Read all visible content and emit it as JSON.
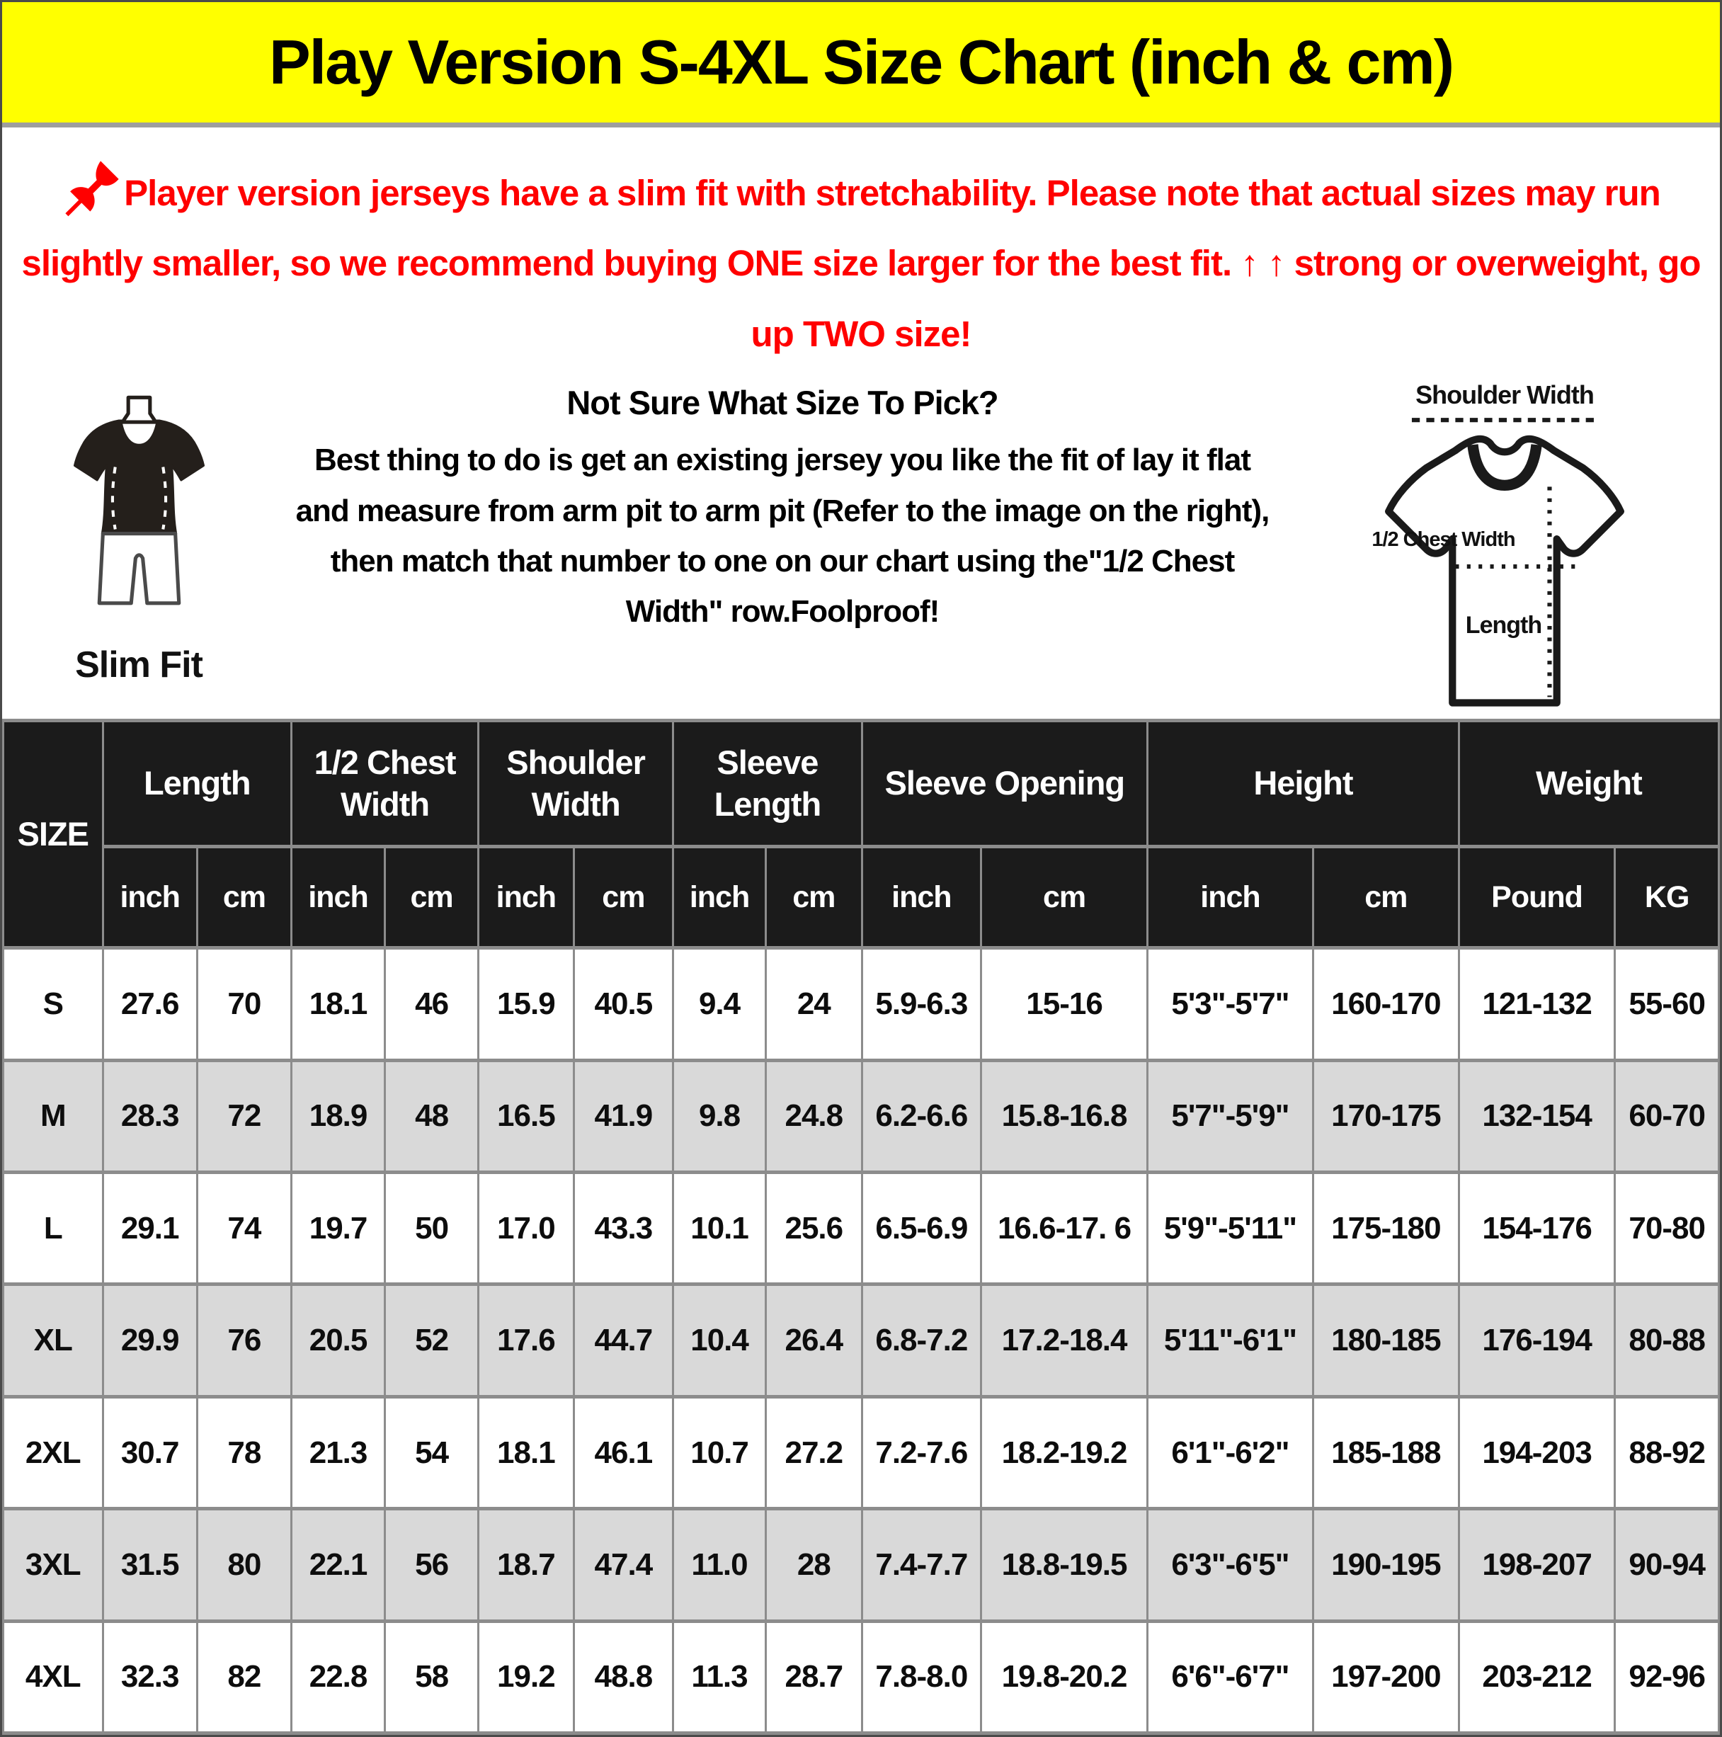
{
  "title": "Play Version S-4XL Size Chart (inch & cm)",
  "colors": {
    "banner_yellow": "#ffff00",
    "warning_red": "#ff0000",
    "table_header_bg": "#1b1b1b",
    "row_alt_gray": "#d9d9d9",
    "grid_border_gray": "#8c8c8c"
  },
  "warning": {
    "icon": "pushpin-icon",
    "text": "Player version jerseys have a slim fit with stretchability. Please note that actual sizes may run slightly smaller, so we recommend buying ONE size larger for the best fit. ↑ ↑ strong or overweight, go up TWO size!"
  },
  "fit_info": {
    "fit_label": "Slim Fit",
    "heading": "Not Sure What Size To Pick?",
    "body": "Best thing to do is get an existing jersey you like the fit of lay it flat and measure from arm pit to arm pit (Refer to the image on the right), then match that number to one on our chart using the\"1/2 Chest Width\" row.Foolproof!"
  },
  "diagram": {
    "shoulder_width_label": "Shoulder Width",
    "half_chest_width_label": "1/2 Chest Width",
    "length_label": "Length"
  },
  "size_table": {
    "corner_label": "SIZE",
    "groups": [
      {
        "label": "Length",
        "units": [
          "inch",
          "cm"
        ]
      },
      {
        "label": "1/2 Chest Width",
        "units": [
          "inch",
          "cm"
        ]
      },
      {
        "label": "Shoulder Width",
        "units": [
          "inch",
          "cm"
        ]
      },
      {
        "label": "Sleeve Length",
        "units": [
          "inch",
          "cm"
        ]
      },
      {
        "label": "Sleeve Opening",
        "units": [
          "inch",
          "cm"
        ]
      },
      {
        "label": "Height",
        "units": [
          "inch",
          "cm"
        ]
      },
      {
        "label": "Weight",
        "units": [
          "Pound",
          "KG"
        ]
      }
    ],
    "rows": [
      {
        "size": "S",
        "values": [
          "27.6",
          "70",
          "18.1",
          "46",
          "15.9",
          "40.5",
          "9.4",
          "24",
          "5.9-6.3",
          "15-16",
          "5'3\"-5'7\"",
          "160-170",
          "121-132",
          "55-60"
        ]
      },
      {
        "size": "M",
        "values": [
          "28.3",
          "72",
          "18.9",
          "48",
          "16.5",
          "41.9",
          "9.8",
          "24.8",
          "6.2-6.6",
          "15.8-16.8",
          "5'7\"-5'9\"",
          "170-175",
          "132-154",
          "60-70"
        ]
      },
      {
        "size": "L",
        "values": [
          "29.1",
          "74",
          "19.7",
          "50",
          "17.0",
          "43.3",
          "10.1",
          "25.6",
          "6.5-6.9",
          "16.6-17. 6",
          "5'9\"-5'11\"",
          "175-180",
          "154-176",
          "70-80"
        ]
      },
      {
        "size": "XL",
        "values": [
          "29.9",
          "76",
          "20.5",
          "52",
          "17.6",
          "44.7",
          "10.4",
          "26.4",
          "6.8-7.2",
          "17.2-18.4",
          "5'11\"-6'1\"",
          "180-185",
          "176-194",
          "80-88"
        ]
      },
      {
        "size": "2XL",
        "values": [
          "30.7",
          "78",
          "21.3",
          "54",
          "18.1",
          "46.1",
          "10.7",
          "27.2",
          "7.2-7.6",
          "18.2-19.2",
          "6'1\"-6'2\"",
          "185-188",
          "194-203",
          "88-92"
        ]
      },
      {
        "size": "3XL",
        "values": [
          "31.5",
          "80",
          "22.1",
          "56",
          "18.7",
          "47.4",
          "11.0",
          "28",
          "7.4-7.7",
          "18.8-19.5",
          "6'3\"-6'5\"",
          "190-195",
          "198-207",
          "90-94"
        ]
      },
      {
        "size": "4XL",
        "values": [
          "32.3",
          "82",
          "22.8",
          "58",
          "19.2",
          "48.8",
          "11.3",
          "28.7",
          "7.8-8.0",
          "19.8-20.2",
          "6'6\"-6'7\"",
          "197-200",
          "203-212",
          "92-96"
        ]
      }
    ]
  }
}
